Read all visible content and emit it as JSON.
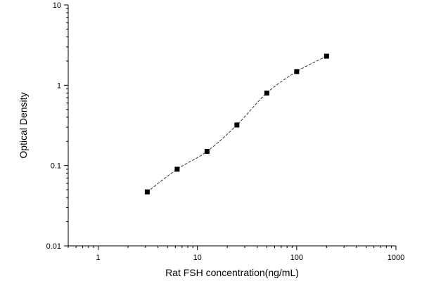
{
  "chart_data": {
    "type": "scatter",
    "title": "",
    "xlabel": "Rat FSH concentration(ng/mL)",
    "ylabel": "Optical Density",
    "x_scale": "log",
    "y_scale": "log",
    "xlim": [
      0.5,
      1000
    ],
    "ylim": [
      0.01,
      10
    ],
    "x_ticks": [
      1,
      10,
      100,
      1000
    ],
    "x_tick_labels": [
      "1",
      "10",
      "100",
      "1000"
    ],
    "y_ticks": [
      0.01,
      0.1,
      1,
      10
    ],
    "y_tick_labels": [
      "0.01",
      "0.1",
      "1",
      "10"
    ],
    "grid": false,
    "legend": "none",
    "series": [
      {
        "x": [
          3.125,
          6.25,
          12.5,
          25,
          50,
          100,
          200
        ],
        "y": [
          0.047,
          0.09,
          0.15,
          0.32,
          0.8,
          1.48,
          2.3
        ],
        "marker": "square",
        "fit_line": "dashed"
      }
    ],
    "colors": {
      "marker": "#000000",
      "line": "#333333",
      "axis": "#000000"
    }
  }
}
